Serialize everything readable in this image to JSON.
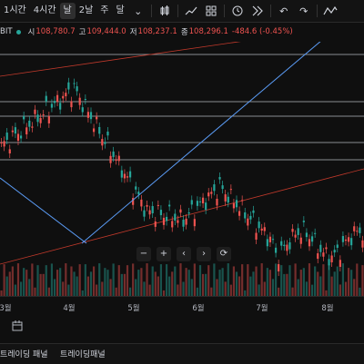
{
  "toolbar": {
    "timeframes": [
      {
        "label": "1시간",
        "active": false
      },
      {
        "label": "4시간",
        "active": false
      },
      {
        "label": "날",
        "active": true
      },
      {
        "label": "2날",
        "active": false
      },
      {
        "label": "주",
        "active": false
      },
      {
        "label": "달",
        "active": false
      }
    ],
    "more_icon": "chevron-down-icon",
    "icons": [
      "candles-icon",
      "indicators-icon",
      "layout-icon",
      "alert-icon",
      "replay-icon",
      "undo-icon",
      "redo-icon",
      "zigzag-icon"
    ]
  },
  "legend": {
    "symbol": "BIT",
    "open_label": "시",
    "open": "108,780.7",
    "high_label": "고",
    "high": "109,444.0",
    "low_label": "저",
    "low": "108,237.1",
    "close_label": "종",
    "close": "108,296.1",
    "change": "-484.6 (-0.45%)"
  },
  "time_axis": [
    "3월",
    "4월",
    "5월",
    "6월",
    "7월",
    "8월"
  ],
  "time_axis_display": [
    "3월",
    "4월",
    "5월",
    "6월",
    "7월",
    "8월"
  ],
  "chart_controls": [
    "−",
    "+",
    "‹",
    "›",
    "⟳"
  ],
  "bottom_tabs": [
    "트레이딩 패널",
    "트레이딩패널"
  ],
  "colors": {
    "up": "#26a69a",
    "down": "#ef5350",
    "trend": "#5b9cf6",
    "level": "#d1d4dc",
    "redline": "#c0392b"
  },
  "chart_data": {
    "type": "candlestick",
    "x_range": [
      "3월",
      "8월"
    ],
    "horizontal_levels": true,
    "trendlines": 2,
    "volume": true
  }
}
